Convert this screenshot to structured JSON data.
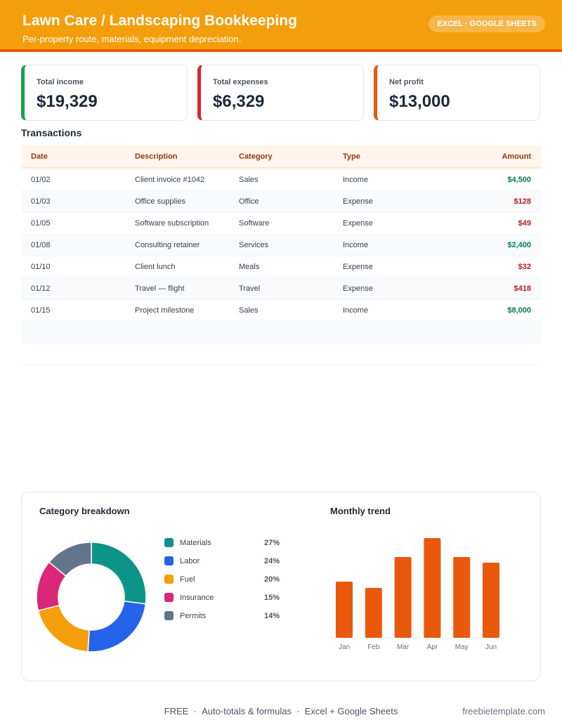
{
  "header": {
    "title": "Lawn Care / Landscaping Bookkeeping",
    "subtitle": "Per-property route, materials, equipment depreciation.",
    "badge": "EXCEL · GOOGLE SHEETS"
  },
  "summary": [
    {
      "label": "Total income",
      "value": "$19,329",
      "color": "#16a34a"
    },
    {
      "label": "Total expenses",
      "value": "$6,329",
      "color": "#dc2626"
    },
    {
      "label": "Net profit",
      "value": "$13,000",
      "color": "#ea580c"
    }
  ],
  "transactions": {
    "title": "Transactions",
    "columns": [
      "Date",
      "Description",
      "Category",
      "Type",
      "Amount"
    ],
    "rows": [
      [
        "01/02",
        "Client invoice #1042",
        "Sales",
        "Income",
        "$4,500"
      ],
      [
        "01/03",
        "Office supplies",
        "Office",
        "Expense",
        "$128"
      ],
      [
        "01/05",
        "Software subscription",
        "Software",
        "Expense",
        "$49"
      ],
      [
        "01/08",
        "Consulting retainer",
        "Services",
        "Income",
        "$2,400"
      ],
      [
        "01/10",
        "Client lunch",
        "Meals",
        "Expense",
        "$32"
      ],
      [
        "01/12",
        "Travel — flight",
        "Travel",
        "Expense",
        "$418"
      ],
      [
        "01/15",
        "Project milestone",
        "Sales",
        "Income",
        "$8,000"
      ]
    ]
  },
  "chart_data": [
    {
      "type": "donut",
      "title": "Category breakdown",
      "categories": [
        "Materials",
        "Labor",
        "Fuel",
        "Insurance",
        "Permits"
      ],
      "values": [
        27,
        24,
        20,
        15,
        14
      ],
      "value_labels": [
        "27%",
        "24%",
        "20%",
        "15%",
        "14%"
      ],
      "colors": [
        "#0d9488",
        "#2563eb",
        "#f59e0b",
        "#db2777",
        "#64748b"
      ]
    },
    {
      "type": "bar",
      "title": "Monthly trend",
      "categories": [
        "Jan",
        "Feb",
        "Mar",
        "Apr",
        "May",
        "Jun"
      ],
      "values": [
        80,
        71,
        115,
        142,
        115,
        107
      ],
      "color": "#ea580c"
    }
  ],
  "footer": {
    "items": [
      "FREE",
      "Auto-totals & formulas",
      "Excel + Google Sheets"
    ],
    "site": "freebietemplate.com"
  }
}
